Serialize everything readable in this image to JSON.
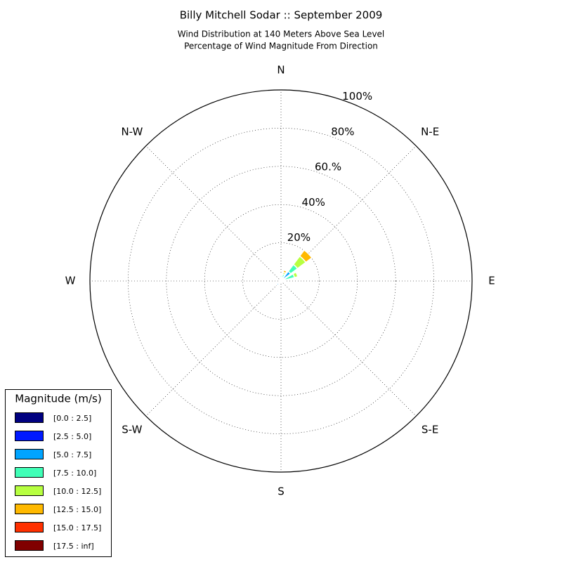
{
  "chart_data": {
    "type": "windrose",
    "title": "Billy Mitchell Sodar :: September 2009",
    "subtitle": [
      "Wind Distribution at 140 Meters Above Sea Level",
      "Percentage of Wind Magnitude From Direction"
    ],
    "categories": [
      "N",
      null,
      "N-E",
      null,
      "E",
      null,
      "S-E",
      null,
      "S",
      null,
      "S-W",
      null,
      "W",
      null,
      "N-W",
      null
    ],
    "rlim": [
      0,
      100
    ],
    "rticks": [
      {
        "value": 20,
        "label": "20%"
      },
      {
        "value": 40,
        "label": "40%"
      },
      {
        "value": 60,
        "label": "60.%"
      },
      {
        "value": 80,
        "label": "80%"
      },
      {
        "value": 100,
        "label": "100%"
      }
    ],
    "grid": true,
    "legend_title": "Magnitude (m/s)",
    "legend_position": "lower left",
    "series": [
      {
        "name": "[0.0 : 2.5]",
        "color": "#000080",
        "values": [
          0.2,
          0.2,
          0.3,
          0.2,
          0.2,
          0,
          0,
          0,
          0,
          0.2,
          0.4,
          0.2,
          0,
          0,
          0,
          0
        ]
      },
      {
        "name": "[2.5 : 5.0]",
        "color": "#0019ff",
        "values": [
          0.3,
          0.5,
          1,
          0.6,
          0.3,
          0,
          0,
          0,
          0,
          0.3,
          1,
          0.3,
          0,
          0,
          0,
          0
        ]
      },
      {
        "name": "[5.0 : 7.5]",
        "color": "#00a4ff",
        "values": [
          1,
          1,
          5,
          1.5,
          0.5,
          0,
          0,
          0,
          0,
          0,
          1.5,
          0.2,
          0,
          0,
          0,
          0
        ]
      },
      {
        "name": "[7.5 : 10.0]",
        "color": "#40ffb7",
        "values": [
          1.5,
          2,
          4.5,
          5,
          0.5,
          0,
          0,
          0,
          0,
          0,
          0,
          0,
          0,
          0,
          0,
          0
        ]
      },
      {
        "name": "[10.0 : 12.5]",
        "color": "#b7ff40",
        "values": [
          0.5,
          1,
          5.5,
          1.8,
          0,
          0,
          0,
          0,
          0,
          0,
          0,
          0,
          0,
          0,
          0,
          0
        ]
      },
      {
        "name": "[12.5 : 15.0]",
        "color": "#ffb900",
        "values": [
          0,
          1.2,
          4,
          0,
          0,
          0,
          0,
          0,
          0,
          0,
          0,
          0,
          0,
          0,
          0,
          0
        ]
      },
      {
        "name": "[15.0 : 17.5]",
        "color": "#ff3000",
        "values": [
          0,
          0,
          0,
          0,
          0,
          0,
          0,
          0,
          0,
          0,
          0,
          0,
          0,
          0,
          0,
          0
        ]
      },
      {
        "name": "[17.5 : inf]",
        "color": "#800000",
        "values": [
          0,
          0,
          0,
          0,
          0,
          0,
          0,
          0,
          0,
          0,
          0,
          0,
          0,
          0,
          0,
          0
        ]
      }
    ]
  }
}
